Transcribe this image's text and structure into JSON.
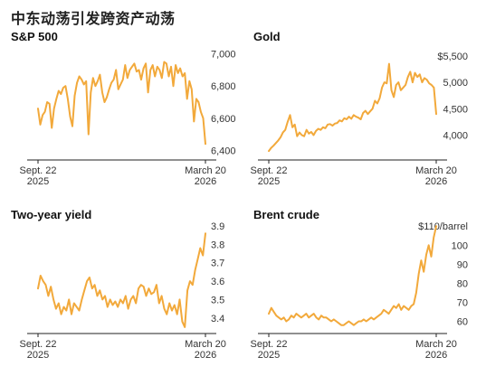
{
  "page_title": "中东动荡引发跨资产动荡",
  "chart_data": [
    {
      "type": "line",
      "title": "S&P 500",
      "x_start_label": [
        "Sept. 22",
        "2025"
      ],
      "x_end_label": [
        "March 20",
        "2026"
      ],
      "ylim": [
        6380,
        7020
      ],
      "yticks": [
        6400,
        6600,
        6800,
        7000
      ],
      "ytick_labels": [
        "6,400",
        "6,600",
        "6,800",
        "7,000"
      ],
      "color": "#f2a93b",
      "values": [
        6660,
        6560,
        6620,
        6640,
        6700,
        6690,
        6540,
        6660,
        6720,
        6770,
        6750,
        6790,
        6800,
        6720,
        6610,
        6550,
        6740,
        6820,
        6860,
        6840,
        6810,
        6830,
        6500,
        6760,
        6850,
        6800,
        6830,
        6870,
        6760,
        6700,
        6730,
        6780,
        6820,
        6840,
        6900,
        6780,
        6810,
        6840,
        6930,
        6850,
        6900,
        6920,
        6940,
        6890,
        6900,
        6840,
        6910,
        6940,
        6760,
        6900,
        6930,
        6860,
        6920,
        6900,
        6850,
        6950,
        6940,
        6860,
        6920,
        6800,
        6930,
        6880,
        6910,
        6860,
        6880,
        6720,
        6830,
        6780,
        6580,
        6720,
        6700,
        6640,
        6600,
        6440
      ]
    },
    {
      "type": "line",
      "title": "Gold",
      "x_start_label": [
        "Sept. 22",
        "2025"
      ],
      "x_end_label": [
        "March 20",
        "2026"
      ],
      "ylim": [
        3650,
        5600
      ],
      "yticks": [
        4000,
        4500,
        5000,
        5500
      ],
      "ytick_labels": [
        "4,000",
        "4,500",
        "5,000",
        "$5,500"
      ],
      "color": "#f2a93b",
      "values": [
        3700,
        3760,
        3800,
        3850,
        3900,
        3960,
        4050,
        4100,
        4250,
        4380,
        4150,
        4200,
        3980,
        4050,
        4000,
        3980,
        4100,
        4030,
        4060,
        4000,
        4080,
        4120,
        4100,
        4150,
        4130,
        4200,
        4210,
        4180,
        4220,
        4230,
        4280,
        4260,
        4320,
        4300,
        4350,
        4310,
        4380,
        4350,
        4330,
        4300,
        4420,
        4460,
        4400,
        4450,
        4500,
        4650,
        4600,
        4700,
        4900,
        5000,
        4980,
        5350,
        4850,
        4720,
        4950,
        5000,
        4850,
        4900,
        4950,
        5100,
        5200,
        5000,
        5180,
        5100,
        5150,
        5000,
        5080,
        5050,
        4980,
        4950,
        4900,
        4400
      ]
    },
    {
      "type": "line",
      "title": "Two-year yield",
      "x_start_label": [
        "Sept. 22",
        "2025"
      ],
      "x_end_label": [
        "March 20",
        "2026"
      ],
      "ylim": [
        3.33,
        3.92
      ],
      "yticks": [
        3.4,
        3.5,
        3.6,
        3.7,
        3.8,
        3.9
      ],
      "ytick_labels": [
        "3.4",
        "3.5",
        "3.6",
        "3.7",
        "3.8",
        "3.9"
      ],
      "color": "#f2a93b",
      "values": [
        3.56,
        3.63,
        3.6,
        3.58,
        3.52,
        3.57,
        3.5,
        3.45,
        3.48,
        3.42,
        3.46,
        3.44,
        3.5,
        3.42,
        3.48,
        3.46,
        3.44,
        3.5,
        3.55,
        3.6,
        3.62,
        3.56,
        3.58,
        3.52,
        3.55,
        3.5,
        3.52,
        3.46,
        3.5,
        3.47,
        3.49,
        3.46,
        3.5,
        3.48,
        3.52,
        3.45,
        3.5,
        3.52,
        3.48,
        3.56,
        3.58,
        3.57,
        3.52,
        3.56,
        3.53,
        3.54,
        3.58,
        3.48,
        3.52,
        3.45,
        3.42,
        3.48,
        3.44,
        3.47,
        3.42,
        3.5,
        3.38,
        3.35,
        3.55,
        3.6,
        3.58,
        3.66,
        3.72,
        3.78,
        3.74,
        3.86
      ]
    },
    {
      "type": "line",
      "title": "Brent crude",
      "x_start_label": [
        "Sept. 22",
        "2025"
      ],
      "x_end_label": [
        "March 20",
        "2026"
      ],
      "ylim": [
        55,
        112
      ],
      "yticks": [
        60,
        70,
        80,
        90,
        100,
        110
      ],
      "ytick_labels": [
        "60",
        "70",
        "80",
        "90",
        "100",
        "$110/barrel"
      ],
      "color": "#f2a93b",
      "values": [
        64,
        67,
        65,
        63,
        62,
        61,
        62,
        60,
        61,
        63,
        62,
        64,
        63,
        62,
        63,
        64,
        62,
        63,
        64,
        62,
        61,
        63,
        62,
        62,
        61,
        60,
        61,
        60,
        59,
        58,
        58,
        59,
        60,
        59,
        58,
        59,
        60,
        60,
        61,
        60,
        61,
        62,
        61,
        62,
        63,
        64,
        66,
        65,
        64,
        66,
        68,
        67,
        69,
        66,
        68,
        67,
        66,
        68,
        69,
        75,
        85,
        92,
        86,
        95,
        100,
        94,
        104,
        110
      ]
    }
  ]
}
